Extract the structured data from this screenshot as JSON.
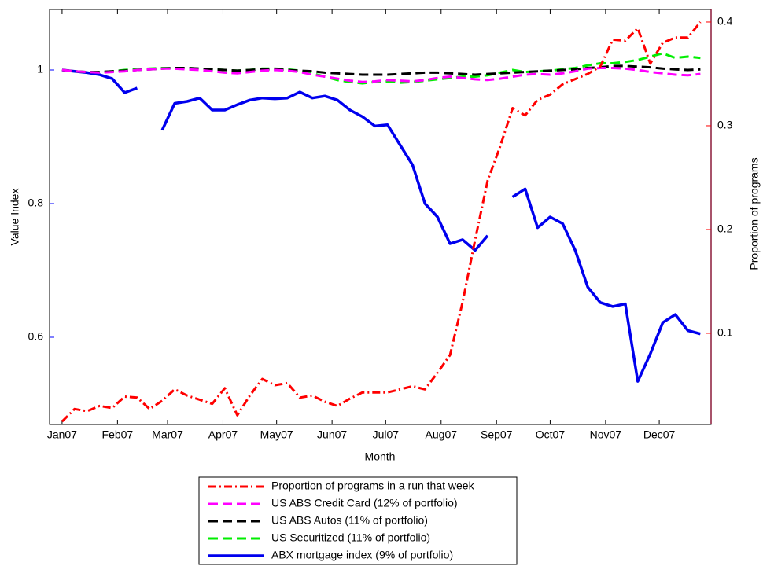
{
  "chart_data": {
    "type": "line",
    "xlabel": "Month",
    "ylabel": "Value Index",
    "y2label": "Proportion of programs",
    "x": [
      0,
      7,
      14,
      21,
      28,
      35,
      42,
      49,
      56,
      63,
      70,
      77,
      84,
      91,
      98,
      105,
      112,
      119,
      126,
      133,
      140,
      147,
      154,
      161,
      168,
      175,
      182,
      189,
      196,
      203,
      210,
      217,
      224,
      231,
      238,
      245,
      252,
      259,
      266,
      273,
      280,
      287,
      294,
      301,
      308,
      315,
      322,
      329,
      336,
      343,
      350,
      357
    ],
    "xlim": [
      -7,
      363
    ],
    "xticks": [
      {
        "value": 0,
        "label": "Jan07"
      },
      {
        "value": 31,
        "label": "Feb07"
      },
      {
        "value": 59,
        "label": "Mar07"
      },
      {
        "value": 90,
        "label": "Apr07"
      },
      {
        "value": 120,
        "label": "May07"
      },
      {
        "value": 151,
        "label": "Jun07"
      },
      {
        "value": 181,
        "label": "Jul07"
      },
      {
        "value": 212,
        "label": "Aug07"
      },
      {
        "value": 243,
        "label": "Sep07"
      },
      {
        "value": 273,
        "label": "Oct07"
      },
      {
        "value": 304,
        "label": "Nov07"
      },
      {
        "value": 334,
        "label": "Dec07"
      }
    ],
    "ylim": [
      0.4694,
      1.0906
    ],
    "yticks": [
      0.6,
      0.8,
      1
    ],
    "y2lim": [
      0.0121,
      0.4121
    ],
    "y2ticks": [
      0.1,
      0.2,
      0.3,
      0.4
    ],
    "ylabel_color": "#0000ff",
    "y2label_color": "#ff0000",
    "series": [
      {
        "name": "Proportion of programs in a run that week",
        "color": "#ff0000",
        "style": "dashdot",
        "axis": "y2",
        "values": [
          0.015,
          0.027,
          0.025,
          0.03,
          0.028,
          0.039,
          0.038,
          0.027,
          0.035,
          0.046,
          0.04,
          0.036,
          0.032,
          0.047,
          0.021,
          0.04,
          0.056,
          0.05,
          0.052,
          0.038,
          0.04,
          0.034,
          0.03,
          0.037,
          0.043,
          0.043,
          0.043,
          0.046,
          0.049,
          0.046,
          0.062,
          0.079,
          0.13,
          0.19,
          0.247,
          0.28,
          0.317,
          0.31,
          0.325,
          0.33,
          0.34,
          0.345,
          0.35,
          0.357,
          0.383,
          0.382,
          0.394,
          0.36,
          0.38,
          0.385,
          0.385,
          0.4
        ]
      },
      {
        "name": "US ABS Credit Card (12% of portfolio)",
        "color": "#ff00ff",
        "style": "dashed",
        "values": [
          1.0,
          0.998,
          0.997,
          0.996,
          0.997,
          0.998,
          1.0,
          1.001,
          1.002,
          1.002,
          1.001,
          1.0,
          0.998,
          0.996,
          0.995,
          0.997,
          0.999,
          1.0,
          0.999,
          0.997,
          0.993,
          0.99,
          0.987,
          0.984,
          0.982,
          0.983,
          0.985,
          0.984,
          0.983,
          0.985,
          0.988,
          0.99,
          0.988,
          0.986,
          0.985,
          0.987,
          0.99,
          0.993,
          0.994,
          0.993,
          0.995,
          0.998,
          1.002,
          1.003,
          1.003,
          1.002,
          1.0,
          0.997,
          0.995,
          0.993,
          0.992,
          0.994
        ]
      },
      {
        "name": "US ABS Autos (11% of portfolio)",
        "color": "#000000",
        "style": "dashed",
        "values": [
          1.0,
          0.998,
          0.997,
          0.997,
          0.998,
          0.999,
          1.0,
          1.001,
          1.002,
          1.003,
          1.003,
          1.002,
          1.001,
          1.0,
          0.999,
          1.0,
          1.001,
          1.001,
          1.0,
          0.999,
          0.998,
          0.996,
          0.995,
          0.994,
          0.993,
          0.993,
          0.993,
          0.994,
          0.995,
          0.996,
          0.996,
          0.995,
          0.994,
          0.993,
          0.994,
          0.995,
          0.996,
          0.997,
          0.998,
          0.999,
          1.0,
          1.001,
          1.003,
          1.004,
          1.006,
          1.006,
          1.005,
          1.004,
          1.002,
          1.001,
          1.0,
          1.001
        ]
      },
      {
        "name": "US Securitized (11% of portfolio)",
        "color": "#00ee00",
        "style": "dashed",
        "values": [
          1.0,
          0.998,
          0.997,
          0.997,
          0.998,
          1.0,
          1.001,
          1.002,
          1.003,
          1.003,
          1.003,
          1.002,
          1.001,
          1.0,
          0.999,
          1.0,
          1.002,
          1.002,
          1.001,
          0.999,
          0.995,
          0.99,
          0.985,
          0.982,
          0.98,
          0.982,
          0.983,
          0.981,
          0.982,
          0.984,
          0.986,
          0.988,
          0.99,
          0.99,
          0.992,
          0.996,
          1.0,
          0.997,
          0.998,
          0.999,
          1.001,
          1.003,
          1.007,
          1.01,
          1.01,
          1.012,
          1.015,
          1.02,
          1.025,
          1.018,
          1.02,
          1.018
        ]
      },
      {
        "name": "ABX mortgage index (9% of portfolio)",
        "color": "#0000ee",
        "style": "solid",
        "values": [
          1.0,
          0.998,
          0.996,
          0.993,
          0.987,
          0.966,
          0.973,
          null,
          0.91,
          0.95,
          0.953,
          0.958,
          0.94,
          0.94,
          0.948,
          0.955,
          0.958,
          0.957,
          0.958,
          0.967,
          0.958,
          0.961,
          0.955,
          0.94,
          0.93,
          0.916,
          0.918,
          0.888,
          0.858,
          0.8,
          0.78,
          0.74,
          0.746,
          0.73,
          0.752,
          null,
          0.81,
          0.822,
          0.764,
          0.78,
          0.77,
          0.73,
          0.675,
          0.652,
          0.646,
          0.65,
          0.534,
          0.575,
          0.622,
          0.634,
          0.61,
          0.605
        ]
      }
    ]
  }
}
